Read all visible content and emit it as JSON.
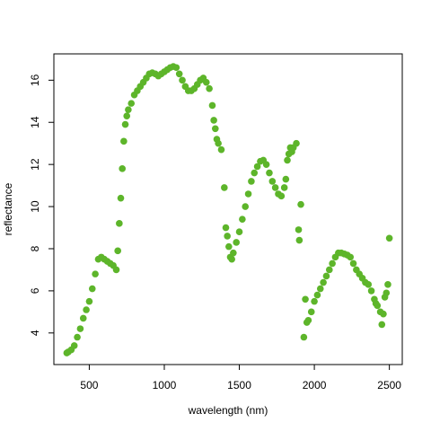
{
  "chart_data": {
    "type": "scatter",
    "x_label": "wavelength (nm)",
    "y_label": "reflectance",
    "color": "#5db52a",
    "xlim": [
      264,
      2586
    ],
    "xticks": [
      500,
      1000,
      1500,
      2000,
      2500
    ],
    "ylim": [
      2.5,
      17.25
    ],
    "yticks": [
      4,
      6,
      8,
      10,
      12,
      14,
      16
    ],
    "x": [
      350,
      360,
      380,
      400,
      420,
      440,
      460,
      480,
      500,
      520,
      540,
      560,
      580,
      600,
      620,
      640,
      660,
      680,
      690,
      700,
      710,
      720,
      730,
      740,
      750,
      760,
      780,
      800,
      820,
      840,
      860,
      880,
      900,
      920,
      940,
      960,
      980,
      1000,
      1020,
      1040,
      1060,
      1080,
      1100,
      1120,
      1140,
      1160,
      1180,
      1200,
      1220,
      1240,
      1260,
      1280,
      1300,
      1320,
      1330,
      1340,
      1350,
      1360,
      1380,
      1400,
      1410,
      1420,
      1430,
      1440,
      1450,
      1460,
      1480,
      1500,
      1520,
      1540,
      1560,
      1580,
      1600,
      1620,
      1640,
      1660,
      1680,
      1700,
      1720,
      1740,
      1760,
      1780,
      1800,
      1810,
      1820,
      1830,
      1840,
      1850,
      1860,
      1880,
      1895,
      1900,
      1910,
      1930,
      1940,
      1950,
      1960,
      1980,
      2000,
      2020,
      2040,
      2060,
      2080,
      2100,
      2120,
      2140,
      2160,
      2180,
      2200,
      2220,
      2240,
      2260,
      2280,
      2300,
      2320,
      2340,
      2360,
      2380,
      2400,
      2410,
      2420,
      2440,
      2450,
      2460,
      2470,
      2480,
      2490,
      2500
    ],
    "values": [
      3.05,
      3.1,
      3.2,
      3.4,
      3.8,
      4.2,
      4.7,
      5.1,
      5.5,
      6.1,
      6.8,
      7.5,
      7.6,
      7.5,
      7.4,
      7.3,
      7.2,
      7.0,
      7.9,
      9.2,
      10.4,
      11.8,
      13.1,
      13.9,
      14.3,
      14.6,
      14.9,
      15.3,
      15.5,
      15.7,
      15.9,
      16.1,
      16.3,
      16.35,
      16.3,
      16.2,
      16.3,
      16.4,
      16.5,
      16.6,
      16.65,
      16.6,
      16.3,
      16.0,
      15.7,
      15.5,
      15.5,
      15.6,
      15.8,
      16.0,
      16.1,
      15.9,
      15.6,
      14.8,
      14.1,
      13.7,
      13.2,
      13.0,
      12.7,
      10.9,
      9.0,
      8.6,
      8.1,
      7.6,
      7.5,
      7.8,
      8.3,
      8.8,
      9.4,
      10.0,
      10.6,
      11.2,
      11.6,
      11.9,
      12.15,
      12.2,
      12.0,
      11.6,
      11.2,
      10.9,
      10.6,
      10.5,
      10.9,
      11.3,
      12.2,
      12.5,
      12.8,
      12.6,
      12.8,
      13.0,
      8.9,
      8.4,
      10.1,
      3.8,
      5.6,
      4.5,
      4.6,
      5.0,
      5.5,
      5.8,
      6.1,
      6.4,
      6.7,
      7.0,
      7.3,
      7.6,
      7.8,
      7.8,
      7.75,
      7.7,
      7.6,
      7.3,
      7.0,
      6.8,
      6.6,
      6.4,
      6.3,
      6.0,
      5.6,
      5.4,
      5.3,
      5.0,
      4.4,
      4.9,
      5.7,
      5.9,
      6.3,
      8.5
    ]
  }
}
